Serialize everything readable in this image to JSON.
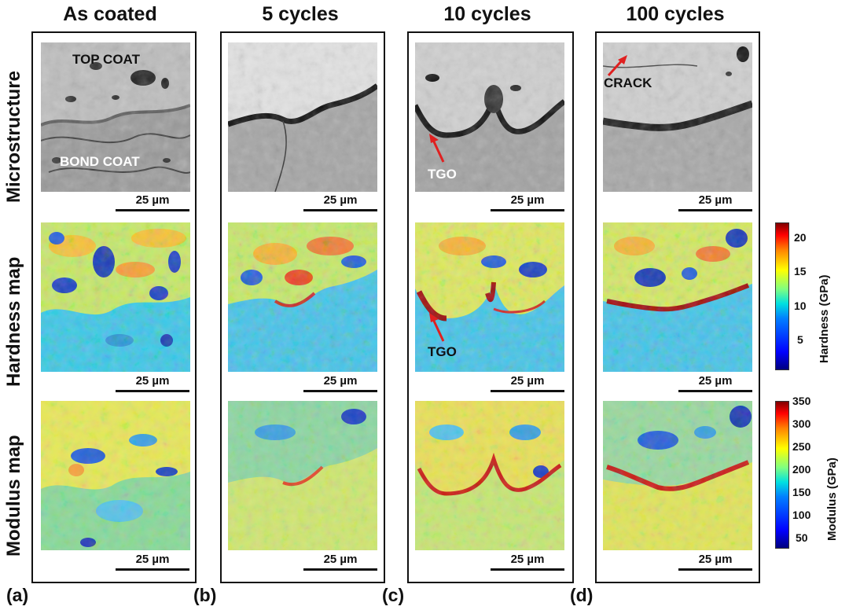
{
  "columns": [
    {
      "title": "As coated",
      "letter": "(a)"
    },
    {
      "title": "5 cycles",
      "letter": "(b)"
    },
    {
      "title": "10 cycles",
      "letter": "(c)"
    },
    {
      "title": "100 cycles",
      "letter": "(d)"
    }
  ],
  "rows": [
    "Microstructure",
    "Hardness map",
    "Modulus map"
  ],
  "scale_bar": "25 µm",
  "annotations": {
    "top_coat": "TOP COAT",
    "bond_coat": "BOND COAT",
    "tgo": "TGO",
    "crack": "CRACK"
  },
  "colorbars": {
    "hardness": {
      "title": "Hardness (GPa)",
      "ticks": [
        "20",
        "15",
        "10",
        "5"
      ],
      "range": [
        0,
        22
      ]
    },
    "modulus": {
      "title": "Modulus (GPa)",
      "ticks": [
        "350",
        "300",
        "250",
        "200",
        "150",
        "100",
        "50"
      ],
      "range": [
        30,
        350
      ]
    }
  },
  "colors": {
    "arrow": "#e02020",
    "frame": "#111111"
  }
}
